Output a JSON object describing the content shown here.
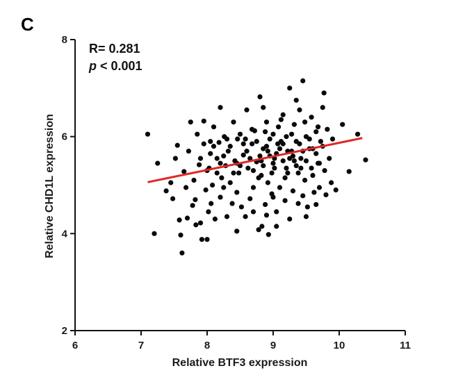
{
  "panel_label": "C",
  "stats": {
    "r_text": "R= 0.281",
    "p_symbol": "p",
    "p_rest": " < 0.001"
  },
  "colors": {
    "points": "#0a0a0a",
    "fit_line": "#e02626",
    "axes": "#111111"
  },
  "chart_data": {
    "type": "scatter",
    "title": "",
    "xlabel": "Relative BTF3 expression",
    "ylabel": "Relative CHD1L expression",
    "xlim": [
      6,
      11
    ],
    "ylim": [
      2,
      8
    ],
    "xticks": [
      6,
      7,
      8,
      9,
      10,
      11
    ],
    "yticks": [
      2,
      4,
      6,
      8
    ],
    "grid": false,
    "legend": "none",
    "correlation": {
      "R": 0.281,
      "p": "< 0.001"
    },
    "fit_line": {
      "x": [
        7.1,
        10.35
      ],
      "y": [
        5.06,
        5.97
      ]
    },
    "series": [
      {
        "points": [
          [
            7.1,
            6.05
          ],
          [
            7.2,
            4.0
          ],
          [
            7.25,
            5.45
          ],
          [
            7.38,
            4.88
          ],
          [
            7.45,
            5.05
          ],
          [
            7.48,
            4.72
          ],
          [
            7.52,
            5.55
          ],
          [
            7.55,
            5.82
          ],
          [
            7.58,
            4.28
          ],
          [
            7.6,
            3.97
          ],
          [
            7.62,
            3.6
          ],
          [
            7.65,
            5.28
          ],
          [
            7.68,
            4.95
          ],
          [
            7.7,
            4.32
          ],
          [
            7.72,
            5.7
          ],
          [
            7.75,
            6.3
          ],
          [
            7.78,
            4.58
          ],
          [
            7.8,
            5.1
          ],
          [
            7.82,
            4.7
          ],
          [
            7.83,
            4.18
          ],
          [
            7.85,
            6.05
          ],
          [
            7.88,
            5.42
          ],
          [
            7.9,
            4.22
          ],
          [
            7.92,
            3.88
          ],
          [
            7.95,
            6.32
          ],
          [
            7.98,
            4.9
          ],
          [
            8.0,
            3.88
          ],
          [
            8.02,
            4.45
          ],
          [
            8.03,
            5.35
          ],
          [
            8.05,
            5.9
          ],
          [
            8.06,
            4.62
          ],
          [
            8.08,
            5.0
          ],
          [
            8.1,
            6.2
          ],
          [
            8.12,
            4.3
          ],
          [
            8.15,
            5.55
          ],
          [
            8.18,
            5.88
          ],
          [
            8.2,
            4.75
          ],
          [
            8.2,
            6.6
          ],
          [
            8.22,
            5.15
          ],
          [
            8.25,
            4.95
          ],
          [
            8.26,
            6.0
          ],
          [
            8.28,
            5.4
          ],
          [
            8.3,
            4.35
          ],
          [
            8.32,
            5.7
          ],
          [
            8.35,
            5.05
          ],
          [
            8.38,
            4.62
          ],
          [
            8.4,
            6.3
          ],
          [
            8.42,
            5.5
          ],
          [
            8.45,
            4.85
          ],
          [
            8.46,
            5.95
          ],
          [
            8.48,
            5.25
          ],
          [
            8.5,
            6.05
          ],
          [
            8.52,
            4.55
          ],
          [
            8.55,
            5.62
          ],
          [
            8.58,
            4.35
          ],
          [
            8.6,
            6.55
          ],
          [
            8.62,
            5.35
          ],
          [
            8.65,
            4.72
          ],
          [
            8.68,
            5.85
          ],
          [
            8.7,
            4.95
          ],
          [
            8.72,
            6.12
          ],
          [
            8.75,
            5.48
          ],
          [
            8.78,
            4.08
          ],
          [
            8.8,
            6.82
          ],
          [
            8.82,
            5.2
          ],
          [
            8.83,
            4.15
          ],
          [
            8.85,
            5.75
          ],
          [
            8.88,
            4.6
          ],
          [
            8.9,
            6.3
          ],
          [
            8.92,
            5.05
          ],
          [
            8.93,
            3.98
          ],
          [
            8.95,
            5.6
          ],
          [
            8.98,
            4.82
          ],
          [
            9.0,
            6.05
          ],
          [
            9.02,
            5.35
          ],
          [
            9.05,
            4.45
          ],
          [
            9.07,
            5.85
          ],
          [
            9.1,
            4.95
          ],
          [
            9.12,
            6.35
          ],
          [
            9.15,
            5.5
          ],
          [
            9.18,
            4.68
          ],
          [
            9.2,
            6.0
          ],
          [
            9.22,
            5.25
          ],
          [
            9.25,
            7.0
          ],
          [
            9.28,
            5.7
          ],
          [
            9.3,
            4.88
          ],
          [
            9.32,
            6.25
          ],
          [
            9.35,
            5.4
          ],
          [
            9.38,
            4.62
          ],
          [
            9.4,
            6.55
          ],
          [
            9.42,
            5.55
          ],
          [
            9.45,
            7.15
          ],
          [
            9.48,
            5.1
          ],
          [
            9.5,
            6.0
          ],
          [
            9.52,
            4.55
          ],
          [
            9.55,
            5.75
          ],
          [
            9.58,
            6.4
          ],
          [
            9.6,
            5.2
          ],
          [
            9.62,
            4.85
          ],
          [
            9.65,
            6.1
          ],
          [
            9.68,
            5.45
          ],
          [
            9.7,
            4.95
          ],
          [
            9.72,
            5.9
          ],
          [
            9.75,
            6.6
          ],
          [
            9.77,
            6.9
          ],
          [
            9.78,
            5.3
          ],
          [
            9.8,
            4.8
          ],
          [
            9.82,
            6.15
          ],
          [
            9.85,
            5.55
          ],
          [
            9.88,
            5.05
          ],
          [
            9.9,
            5.95
          ],
          [
            9.95,
            4.9
          ],
          [
            10.05,
            6.25
          ],
          [
            10.15,
            5.28
          ],
          [
            10.28,
            6.05
          ],
          [
            10.4,
            5.52
          ],
          [
            8.05,
            5.65
          ],
          [
            8.15,
            5.25
          ],
          [
            8.25,
            5.6
          ],
          [
            8.35,
            5.8
          ],
          [
            8.45,
            5.45
          ],
          [
            8.55,
            5.85
          ],
          [
            8.65,
            5.55
          ],
          [
            8.75,
            5.9
          ],
          [
            8.85,
            5.4
          ],
          [
            8.95,
            5.95
          ],
          [
            9.05,
            5.65
          ],
          [
            9.15,
            5.85
          ],
          [
            9.25,
            5.55
          ],
          [
            9.35,
            5.9
          ],
          [
            9.45,
            5.7
          ],
          [
            9.55,
            5.95
          ],
          [
            9.65,
            5.65
          ],
          [
            9.75,
            5.8
          ],
          [
            8.5,
            5.4
          ],
          [
            8.6,
            5.7
          ],
          [
            8.7,
            5.3
          ],
          [
            8.8,
            5.6
          ],
          [
            8.9,
            5.8
          ],
          [
            9.0,
            5.45
          ],
          [
            9.1,
            5.75
          ],
          [
            9.2,
            5.35
          ],
          [
            9.3,
            5.6
          ],
          [
            9.4,
            5.85
          ],
          [
            9.5,
            5.5
          ],
          [
            9.6,
            5.75
          ],
          [
            9.7,
            5.45
          ],
          [
            8.58,
            5.95
          ],
          [
            8.68,
            6.15
          ],
          [
            8.78,
            5.15
          ],
          [
            8.88,
            6.1
          ],
          [
            8.98,
            5.25
          ],
          [
            9.08,
            6.2
          ],
          [
            9.18,
            5.15
          ],
          [
            9.28,
            6.05
          ],
          [
            9.38,
            5.25
          ],
          [
            9.48,
            6.3
          ],
          [
            9.58,
            5.35
          ],
          [
            9.68,
            6.2
          ],
          [
            8.82,
            5.5
          ],
          [
            8.92,
            5.7
          ],
          [
            9.02,
            5.55
          ],
          [
            9.12,
            5.9
          ],
          [
            9.22,
            5.7
          ],
          [
            9.32,
            5.5
          ],
          [
            9.42,
            5.35
          ],
          [
            8.4,
            5.25
          ],
          [
            8.3,
            5.95
          ],
          [
            8.2,
            5.45
          ],
          [
            8.1,
            5.8
          ],
          [
            8.0,
            5.3
          ],
          [
            7.9,
            5.55
          ],
          [
            7.95,
            5.85
          ],
          [
            8.85,
            6.6
          ],
          [
            9.15,
            6.45
          ],
          [
            9.35,
            6.75
          ],
          [
            8.7,
            4.45
          ],
          [
            9.0,
            4.75
          ],
          [
            9.25,
            4.3
          ],
          [
            9.5,
            4.35
          ],
          [
            8.45,
            4.05
          ],
          [
            9.05,
            4.15
          ],
          [
            9.65,
            4.6
          ],
          [
            8.9,
            4.38
          ],
          [
            9.45,
            4.78
          ]
        ]
      }
    ]
  }
}
